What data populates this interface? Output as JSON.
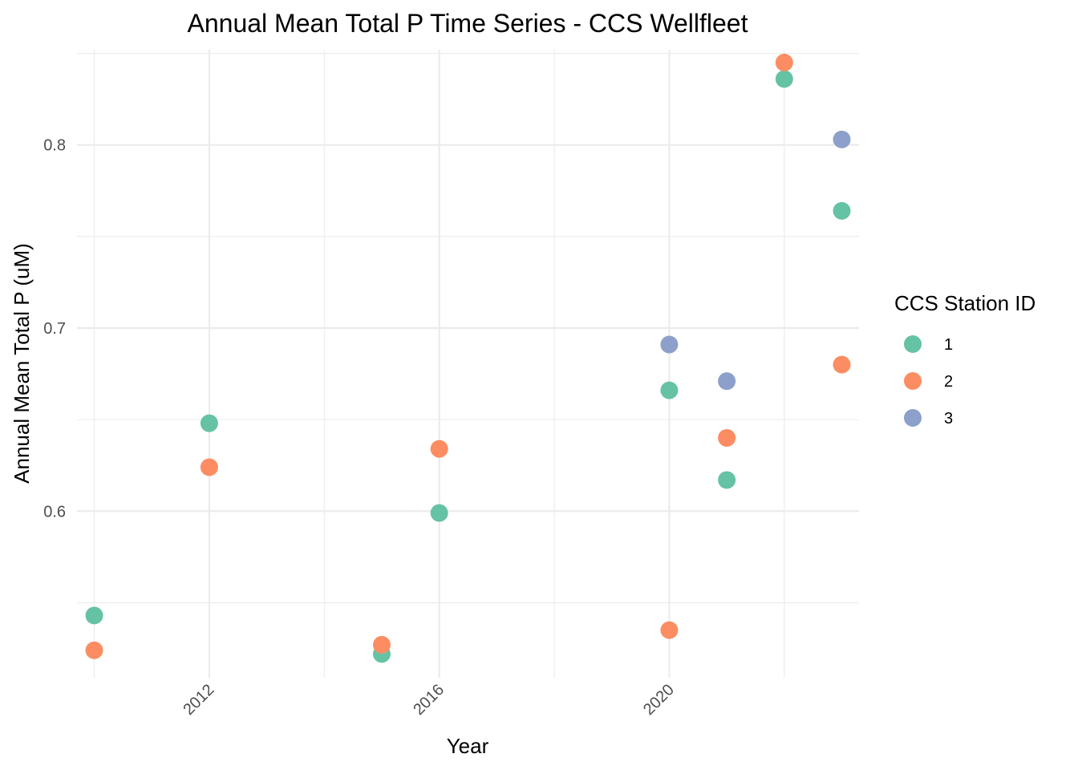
{
  "chart_data": {
    "type": "scatter",
    "title": "Annual Mean Total P Time Series - CCS Wellfleet",
    "xlabel": "Year",
    "ylabel": "Annual Mean Total P (uM)",
    "xlim": [
      2009.7,
      2023.3
    ],
    "ylim": [
      0.509,
      0.852
    ],
    "x_ticks": [
      2012,
      2016,
      2020
    ],
    "x_tick_labels": [
      "2012",
      "2016",
      "2020"
    ],
    "y_ticks": [
      0.6,
      0.7,
      0.8
    ],
    "y_tick_labels": [
      "0.6",
      "0.7",
      "0.8"
    ],
    "grid": true,
    "legend": {
      "title": "CCS Station ID",
      "position": "right"
    },
    "series": [
      {
        "name": "1",
        "color": "#66c2a5",
        "points": [
          {
            "x": 2010,
            "y": 0.543
          },
          {
            "x": 2012,
            "y": 0.648
          },
          {
            "x": 2015,
            "y": 0.522
          },
          {
            "x": 2016,
            "y": 0.599
          },
          {
            "x": 2020,
            "y": 0.666
          },
          {
            "x": 2021,
            "y": 0.617
          },
          {
            "x": 2022,
            "y": 0.836
          },
          {
            "x": 2023,
            "y": 0.764
          }
        ]
      },
      {
        "name": "2",
        "color": "#fc8d62",
        "points": [
          {
            "x": 2010,
            "y": 0.524
          },
          {
            "x": 2012,
            "y": 0.624
          },
          {
            "x": 2015,
            "y": 0.527
          },
          {
            "x": 2016,
            "y": 0.634
          },
          {
            "x": 2020,
            "y": 0.535
          },
          {
            "x": 2021,
            "y": 0.64
          },
          {
            "x": 2022,
            "y": 0.845
          },
          {
            "x": 2023,
            "y": 0.68
          }
        ]
      },
      {
        "name": "3",
        "color": "#8da0cb",
        "points": [
          {
            "x": 2020,
            "y": 0.691
          },
          {
            "x": 2021,
            "y": 0.671
          },
          {
            "x": 2023,
            "y": 0.803
          }
        ]
      }
    ]
  }
}
